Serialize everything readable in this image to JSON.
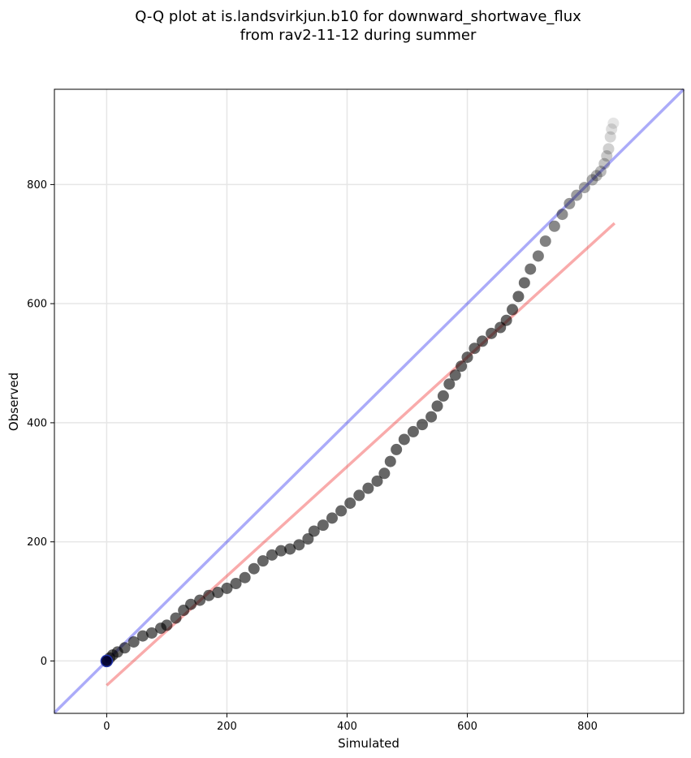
{
  "chart_data": {
    "type": "scatter",
    "title": [
      "Q-Q plot at is.landsvirkjun.b10 for downward_shortwave_flux",
      "from rav2-11-12 during summer"
    ],
    "xlabel": "Simulated",
    "ylabel": "Observed",
    "xlim": [
      -87,
      960
    ],
    "ylim": [
      -88,
      960
    ],
    "xticks": [
      0,
      200,
      400,
      600,
      800
    ],
    "yticks": [
      0,
      200,
      400,
      600,
      800
    ],
    "grid": true,
    "lines": [
      {
        "name": "1:1",
        "color": "#0000ee",
        "opacity": 0.33,
        "x": [
          -87,
          960
        ],
        "y": [
          -87,
          960
        ]
      },
      {
        "name": "fit",
        "color": "#ee0000",
        "opacity": 0.33,
        "x": [
          0,
          845
        ],
        "y": [
          -41,
          735
        ]
      }
    ],
    "points_color": "#000000",
    "points": [
      [
        0,
        0
      ],
      [
        5,
        5
      ],
      [
        10,
        10
      ],
      [
        18,
        15
      ],
      [
        30,
        22
      ],
      [
        45,
        32
      ],
      [
        60,
        42
      ],
      [
        75,
        47
      ],
      [
        90,
        55
      ],
      [
        100,
        60
      ],
      [
        115,
        72
      ],
      [
        128,
        85
      ],
      [
        140,
        95
      ],
      [
        155,
        102
      ],
      [
        170,
        110
      ],
      [
        185,
        115
      ],
      [
        200,
        122
      ],
      [
        215,
        130
      ],
      [
        230,
        140
      ],
      [
        245,
        155
      ],
      [
        260,
        168
      ],
      [
        275,
        178
      ],
      [
        290,
        185
      ],
      [
        305,
        188
      ],
      [
        320,
        195
      ],
      [
        335,
        205
      ],
      [
        345,
        218
      ],
      [
        360,
        228
      ],
      [
        375,
        240
      ],
      [
        390,
        252
      ],
      [
        405,
        265
      ],
      [
        420,
        278
      ],
      [
        435,
        290
      ],
      [
        450,
        302
      ],
      [
        462,
        315
      ],
      [
        472,
        335
      ],
      [
        482,
        355
      ],
      [
        495,
        372
      ],
      [
        510,
        385
      ],
      [
        525,
        397
      ],
      [
        540,
        410
      ],
      [
        550,
        428
      ],
      [
        560,
        445
      ],
      [
        570,
        465
      ],
      [
        580,
        480
      ],
      [
        590,
        495
      ],
      [
        600,
        510
      ],
      [
        612,
        525
      ],
      [
        625,
        537
      ],
      [
        640,
        550
      ],
      [
        655,
        560
      ],
      [
        665,
        572
      ],
      [
        675,
        590
      ],
      [
        685,
        612
      ],
      [
        695,
        635
      ],
      [
        705,
        658
      ],
      [
        718,
        680
      ],
      [
        730,
        705
      ],
      [
        745,
        730
      ],
      [
        758,
        750
      ],
      [
        770,
        768
      ],
      [
        782,
        782
      ],
      [
        795,
        795
      ],
      [
        808,
        808
      ],
      [
        815,
        815
      ],
      [
        822,
        822
      ],
      [
        828,
        835
      ],
      [
        832,
        848
      ],
      [
        835,
        860
      ],
      [
        838,
        880
      ],
      [
        840,
        893
      ],
      [
        843,
        903
      ]
    ]
  }
}
